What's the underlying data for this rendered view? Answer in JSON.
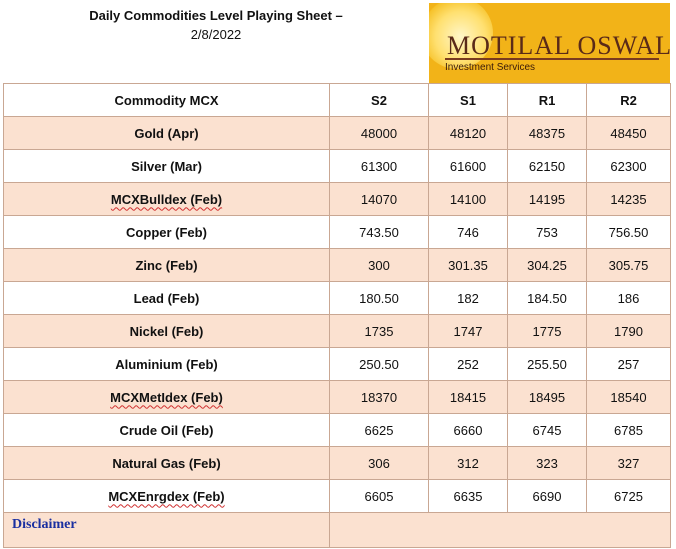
{
  "header": {
    "title": "Daily Commodities Level Playing Sheet –",
    "date": "2/8/2022"
  },
  "logo": {
    "brand": "MOTILAL OSWAL",
    "sub": "Investment Services",
    "color": "#f2b318"
  },
  "table": {
    "columns": [
      "Commodity MCX",
      "S2",
      "S1",
      "R1",
      "R2"
    ],
    "rows": [
      {
        "name": "Gold (Apr)",
        "s2": "48000",
        "s1": "48120",
        "r1": "48375",
        "r2": "48450"
      },
      {
        "name": "Silver (Mar)",
        "s2": "61300",
        "s1": "61600",
        "r1": "62150",
        "r2": "62300"
      },
      {
        "name": "MCXBulldex (Feb)",
        "s2": "14070",
        "s1": "14100",
        "r1": "14195",
        "r2": "14235"
      },
      {
        "name": "Copper (Feb)",
        "s2": "743.50",
        "s1": "746",
        "r1": "753",
        "r2": "756.50"
      },
      {
        "name": "Zinc (Feb)",
        "s2": "300",
        "s1": "301.35",
        "r1": "304.25",
        "r2": "305.75"
      },
      {
        "name": "Lead (Feb)",
        "s2": "180.50",
        "s1": "182",
        "r1": "184.50",
        "r2": "186"
      },
      {
        "name": "Nickel (Feb)",
        "s2": "1735",
        "s1": "1747",
        "r1": "1775",
        "r2": "1790"
      },
      {
        "name": "Aluminium (Feb)",
        "s2": "250.50",
        "s1": "252",
        "r1": "255.50",
        "r2": "257"
      },
      {
        "name": "MCXMetIdex (Feb)",
        "s2": "18370",
        "s1": "18415",
        "r1": "18495",
        "r2": "18540"
      },
      {
        "name": "Crude Oil (Feb)",
        "s2": "6625",
        "s1": "6660",
        "r1": "6745",
        "r2": "6785"
      },
      {
        "name": "Natural Gas (Feb)",
        "s2": "306",
        "s1": "312",
        "r1": "323",
        "r2": "327"
      },
      {
        "name": "MCXEnrgdex (Feb)",
        "s2": "6605",
        "s1": "6635",
        "r1": "6690",
        "r2": "6725"
      }
    ]
  },
  "footer": {
    "disclaimer": "Disclaimer"
  },
  "colors": {
    "row_shade": "#fbe1d0",
    "border": "#c9a793",
    "disclaimer": "#1a2fa0"
  }
}
